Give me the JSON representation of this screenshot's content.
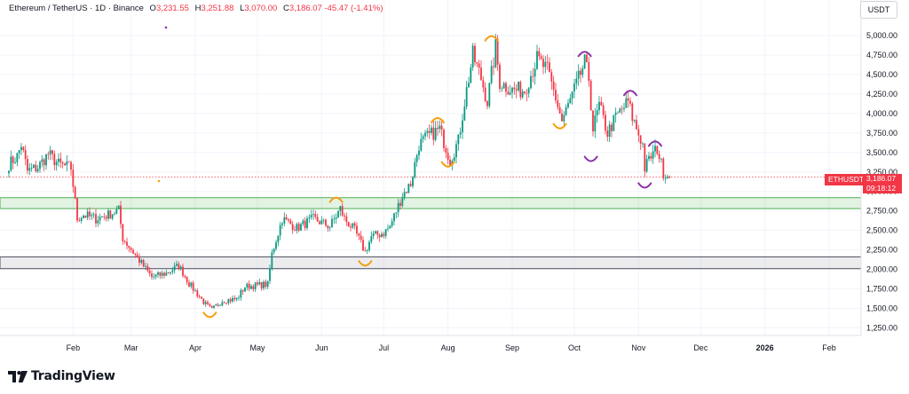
{
  "header": {
    "symbol": "Ethereum / TetherUS · 1D · Binance",
    "open_label": "O",
    "open": "3,231.55",
    "high_label": "H",
    "high": "3,251.88",
    "low_label": "L",
    "low": "3,070.00",
    "close_label": "C",
    "close": "3,186.07",
    "change": "-45.47 (-1.41%)"
  },
  "currency": "USDT",
  "price_tag": {
    "symbol": "ETHUSDT",
    "price": "3,186.07",
    "countdown": "09:18:12"
  },
  "logo": {
    "text": "TradingView"
  },
  "colors": {
    "up": "#089981",
    "down": "#f23645",
    "orange": "#f59e0b",
    "purple": "#8b2fa8",
    "green_zone": "#4caf50",
    "grey_zone": "#b2b5be"
  },
  "chart_data": {
    "type": "candlestick",
    "x_tick_labels": [
      "Feb",
      "Mar",
      "Apr",
      "May",
      "Jun",
      "Jul",
      "Aug",
      "Sep",
      "Oct",
      "Nov",
      "Dec",
      "2026",
      "Feb"
    ],
    "x_tick_dates": [
      "2025-02-01",
      "2025-03-01",
      "2025-04-01",
      "2025-05-01",
      "2025-06-01",
      "2025-07-01",
      "2025-08-01",
      "2025-09-01",
      "2025-10-01",
      "2025-11-01",
      "2025-12-01",
      "2026-01-01",
      "2026-02-01"
    ],
    "y_tick_labels": [
      "5,000.00",
      "4,750.00",
      "4,500.00",
      "4,250.00",
      "4,000.00",
      "3,750.00",
      "3,500.00",
      "3,250.00",
      "3,000.00",
      "2,750.00",
      "2,500.00",
      "2,250.00",
      "2,000.00",
      "1,750.00",
      "1,500.00",
      "1,250.00"
    ],
    "y_ticks": [
      5000,
      4750,
      4500,
      4250,
      4000,
      3750,
      3500,
      3250,
      3000,
      2750,
      2500,
      2250,
      2000,
      1750,
      1500,
      1250
    ],
    "ylim": [
      1100,
      5200
    ],
    "last_price": 3186.07,
    "zones": [
      {
        "name": "green-support-zone",
        "from": 2780,
        "to": 2920
      },
      {
        "name": "grey-support-zone",
        "from": 2010,
        "to": 2160
      }
    ],
    "anchors": [
      [
        "2025-01-01",
        3350
      ],
      [
        "2025-01-05",
        3450
      ],
      [
        "2025-01-07",
        3600
      ],
      [
        "2025-01-10",
        3260
      ],
      [
        "2025-01-15",
        3310
      ],
      [
        "2025-01-20",
        3480
      ],
      [
        "2025-01-25",
        3350
      ],
      [
        "2025-01-31",
        3300
      ],
      [
        "2025-02-03",
        2650
      ],
      [
        "2025-02-06",
        2700
      ],
      [
        "2025-02-12",
        2650
      ],
      [
        "2025-02-18",
        2700
      ],
      [
        "2025-02-23",
        2760
      ],
      [
        "2025-02-25",
        2400
      ],
      [
        "2025-03-04",
        2150
      ],
      [
        "2025-03-11",
        1900
      ],
      [
        "2025-03-18",
        1950
      ],
      [
        "2025-03-24",
        2050
      ],
      [
        "2025-03-29",
        1820
      ],
      [
        "2025-04-06",
        1550
      ],
      [
        "2025-04-09",
        1480
      ],
      [
        "2025-04-14",
        1600
      ],
      [
        "2025-04-21",
        1620
      ],
      [
        "2025-04-25",
        1780
      ],
      [
        "2025-05-06",
        1810
      ],
      [
        "2025-05-08",
        2200
      ],
      [
        "2025-05-13",
        2650
      ],
      [
        "2025-05-20",
        2530
      ],
      [
        "2025-05-28",
        2650
      ],
      [
        "2025-06-05",
        2550
      ],
      [
        "2025-06-10",
        2780
      ],
      [
        "2025-06-12",
        2650
      ],
      [
        "2025-06-17",
        2500
      ],
      [
        "2025-06-22",
        2220
      ],
      [
        "2025-06-25",
        2420
      ],
      [
        "2025-07-01",
        2470
      ],
      [
        "2025-07-04",
        2550
      ],
      [
        "2025-07-10",
        2950
      ],
      [
        "2025-07-14",
        3100
      ],
      [
        "2025-07-18",
        3600
      ],
      [
        "2025-07-22",
        3700
      ],
      [
        "2025-07-28",
        3800
      ],
      [
        "2025-08-02",
        3400
      ],
      [
        "2025-08-06",
        3650
      ],
      [
        "2025-08-09",
        4150
      ],
      [
        "2025-08-13",
        4750
      ],
      [
        "2025-08-17",
        4450
      ],
      [
        "2025-08-20",
        4150
      ],
      [
        "2025-08-24",
        4850
      ],
      [
        "2025-08-26",
        4400
      ],
      [
        "2025-09-01",
        4300
      ],
      [
        "2025-09-07",
        4300
      ],
      [
        "2025-09-13",
        4700
      ],
      [
        "2025-09-18",
        4550
      ],
      [
        "2025-09-22",
        4200
      ],
      [
        "2025-09-25",
        3900
      ],
      [
        "2025-10-01",
        4300
      ],
      [
        "2025-10-06",
        4650
      ],
      [
        "2025-10-08",
        4450
      ],
      [
        "2025-10-10",
        3800
      ],
      [
        "2025-10-13",
        4100
      ],
      [
        "2025-10-17",
        3750
      ],
      [
        "2025-10-21",
        3950
      ],
      [
        "2025-10-27",
        4150
      ],
      [
        "2025-10-29",
        3950
      ],
      [
        "2025-11-03",
        3600
      ],
      [
        "2025-11-04",
        3300
      ],
      [
        "2025-11-07",
        3450
      ],
      [
        "2025-11-10",
        3550
      ],
      [
        "2025-11-13",
        3250
      ],
      [
        "2025-11-16",
        3186
      ]
    ]
  }
}
